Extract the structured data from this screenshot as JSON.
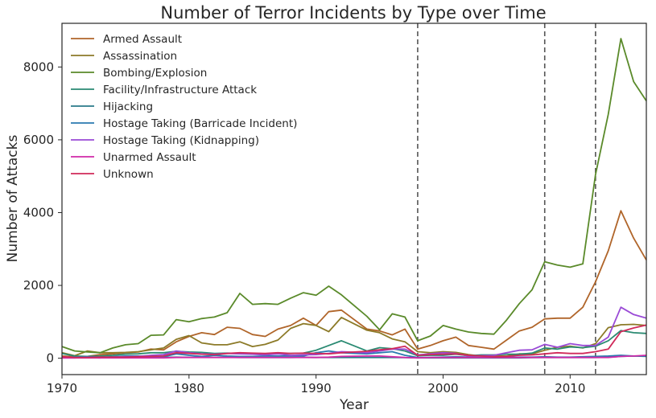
{
  "chart_data": {
    "type": "line",
    "title": "Number of Terror Incidents by Type over Time",
    "xlabel": "Year",
    "ylabel": "Number of Attacks",
    "xlim": [
      1970,
      2016
    ],
    "ylim": [
      -450,
      9200
    ],
    "xticks": [
      1970,
      1980,
      1990,
      2000,
      2010
    ],
    "yticks": [
      0,
      2000,
      4000,
      6000,
      8000
    ],
    "grid": false,
    "legend_position": "top-left",
    "vlines": [
      1998,
      2008,
      2012
    ],
    "x": [
      1970,
      1971,
      1972,
      1973,
      1974,
      1975,
      1976,
      1977,
      1978,
      1979,
      1980,
      1981,
      1982,
      1983,
      1984,
      1985,
      1986,
      1987,
      1988,
      1989,
      1990,
      1991,
      1992,
      1994,
      1995,
      1996,
      1997,
      1998,
      1999,
      2000,
      2001,
      2002,
      2003,
      2004,
      2005,
      2006,
      2007,
      2008,
      2009,
      2010,
      2011,
      2012,
      2013,
      2014,
      2015,
      2016
    ],
    "series": [
      {
        "name": "Armed Assault",
        "color": "#b0652a",
        "values": [
          60,
          40,
          50,
          100,
          120,
          150,
          170,
          250,
          230,
          450,
          600,
          700,
          650,
          850,
          820,
          650,
          600,
          800,
          900,
          1100,
          900,
          1280,
          1320,
          800,
          750,
          640,
          800,
          250,
          350,
          480,
          580,
          350,
          300,
          250,
          500,
          750,
          850,
          1080,
          1100,
          1100,
          1400,
          2100,
          2950,
          4050,
          3300,
          2700
        ]
      },
      {
        "name": "Assassination",
        "color": "#8c7a28",
        "values": [
          150,
          70,
          200,
          150,
          150,
          160,
          180,
          230,
          280,
          520,
          620,
          420,
          370,
          370,
          450,
          320,
          380,
          500,
          820,
          950,
          900,
          730,
          1120,
          770,
          700,
          530,
          450,
          180,
          150,
          180,
          160,
          100,
          60,
          60,
          60,
          120,
          120,
          220,
          300,
          330,
          280,
          400,
          840,
          920,
          930,
          900
        ]
      },
      {
        "name": "Bombing/Explosion",
        "color": "#5a8a2a",
        "values": [
          320,
          200,
          170,
          150,
          280,
          370,
          400,
          630,
          640,
          1060,
          1000,
          1090,
          1130,
          1250,
          1780,
          1480,
          1500,
          1480,
          1650,
          1800,
          1730,
          1980,
          1740,
          1150,
          780,
          1220,
          1130,
          480,
          610,
          900,
          800,
          720,
          680,
          660,
          1050,
          1500,
          1880,
          2650,
          2560,
          2500,
          2590,
          5050,
          6700,
          8780,
          7600,
          7070
        ]
      },
      {
        "name": "Facility/Infrastructure Attack",
        "color": "#2a8a72",
        "values": [
          130,
          60,
          50,
          60,
          80,
          110,
          120,
          150,
          150,
          190,
          170,
          160,
          130,
          140,
          130,
          120,
          110,
          120,
          130,
          140,
          220,
          350,
          480,
          200,
          290,
          260,
          200,
          70,
          80,
          80,
          110,
          70,
          90,
          90,
          110,
          110,
          140,
          280,
          250,
          310,
          290,
          330,
          480,
          760,
          700,
          680
        ]
      },
      {
        "name": "Hijacking",
        "color": "#2a7a8a",
        "values": [
          20,
          15,
          30,
          20,
          20,
          15,
          15,
          20,
          20,
          30,
          25,
          25,
          25,
          25,
          20,
          20,
          20,
          20,
          20,
          25,
          20,
          20,
          20,
          20,
          20,
          20,
          15,
          10,
          10,
          10,
          10,
          10,
          10,
          10,
          10,
          10,
          15,
          20,
          20,
          20,
          20,
          20,
          30,
          50,
          60,
          50
        ]
      },
      {
        "name": "Hostage Taking (Barricade Incident)",
        "color": "#2a7ab0",
        "values": [
          20,
          30,
          40,
          30,
          40,
          60,
          60,
          50,
          40,
          120,
          80,
          50,
          80,
          60,
          50,
          50,
          60,
          60,
          60,
          60,
          150,
          200,
          150,
          120,
          150,
          180,
          80,
          20,
          20,
          30,
          40,
          30,
          20,
          20,
          20,
          30,
          30,
          40,
          30,
          30,
          40,
          50,
          60,
          80,
          60,
          60
        ]
      },
      {
        "name": "Hostage Taking (Kidnapping)",
        "color": "#9a4ad6",
        "values": [
          10,
          10,
          20,
          10,
          30,
          40,
          50,
          80,
          100,
          200,
          150,
          120,
          110,
          130,
          120,
          110,
          90,
          120,
          80,
          90,
          100,
          130,
          180,
          150,
          200,
          250,
          250,
          90,
          120,
          150,
          130,
          60,
          70,
          80,
          150,
          220,
          230,
          380,
          300,
          400,
          350,
          350,
          580,
          1400,
          1200,
          1100
        ]
      },
      {
        "name": "Unarmed Assault",
        "color": "#d02aa8",
        "values": [
          10,
          10,
          10,
          10,
          10,
          10,
          10,
          10,
          10,
          20,
          20,
          20,
          20,
          20,
          20,
          20,
          20,
          20,
          20,
          20,
          20,
          30,
          50,
          60,
          60,
          40,
          20,
          10,
          20,
          20,
          20,
          20,
          20,
          20,
          20,
          20,
          20,
          20,
          20,
          20,
          20,
          20,
          20,
          50,
          60,
          80
        ]
      },
      {
        "name": "Unknown",
        "color": "#d02a5a",
        "values": [
          40,
          20,
          20,
          30,
          30,
          30,
          40,
          50,
          60,
          150,
          130,
          110,
          100,
          130,
          150,
          140,
          130,
          150,
          130,
          140,
          130,
          120,
          150,
          190,
          230,
          260,
          330,
          80,
          100,
          110,
          120,
          80,
          60,
          40,
          50,
          80,
          90,
          120,
          150,
          130,
          130,
          180,
          250,
          730,
          830,
          910
        ]
      }
    ]
  }
}
